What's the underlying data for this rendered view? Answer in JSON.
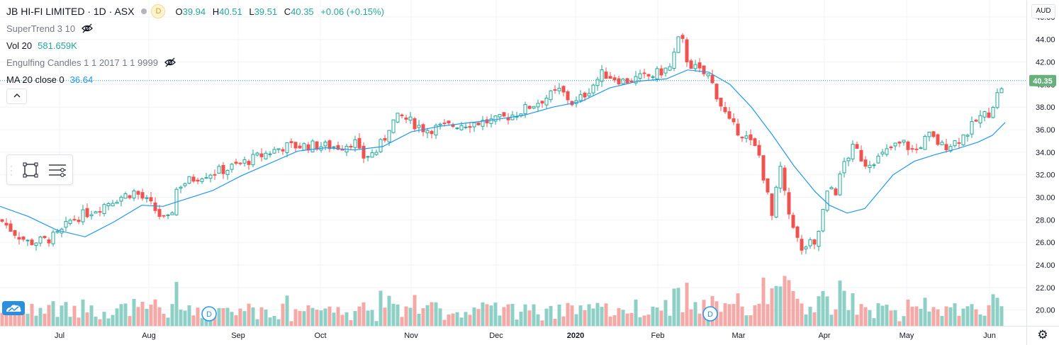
{
  "header": {
    "title": "JB HI-FI LIMITED · 1D · ASX",
    "dividend_badge": "D",
    "ohlc": {
      "o_label": "O",
      "o_value": "39.94",
      "h_label": "H",
      "h_value": "40.51",
      "l_label": "L",
      "l_value": "39.51",
      "c_label": "C",
      "c_value": "40.35",
      "change": "+0.06 (+0.15%)"
    }
  },
  "indicators": [
    {
      "name": "SuperTrend 3 10",
      "value": "",
      "hidden": true
    },
    {
      "name": "Vol 20",
      "value": "581.659K",
      "hidden": false
    },
    {
      "name": "Engulfing Candles 1 1 2017 1 1 9999",
      "value": "",
      "hidden": true
    },
    {
      "name": "MA 20 close 0",
      "value": "36.64",
      "hidden": false
    }
  ],
  "icons": {
    "eye_off": "eye-off-icon",
    "collapse": "chevron-up-icon",
    "rectangle_tool": "rectangle-tool-icon",
    "object_tree": "object-tree-icon",
    "logo": "tradingview-logo-icon",
    "settings": "gear-icon",
    "dividend_marker": "dividend-marker-icon"
  },
  "currency": "AUD",
  "colors": {
    "up": "#26a69a",
    "down": "#ef5350",
    "vol_up": "#8fd0c6",
    "vol_down": "#f4a9a7",
    "ma": "#2196f3",
    "grid": "#f0f3fa",
    "last_price_badge": "#66b07c"
  },
  "last_price_label": "40.35",
  "dividend_markers": [
    {
      "x_date": "2019-08-19",
      "label": "D"
    },
    {
      "x_date": "2020-02-18",
      "label": "D"
    }
  ],
  "chart_data": {
    "type": "candlestick",
    "title": "JB HI-FI LIMITED · 1D · ASX",
    "ylim": [
      18.6,
      47.5
    ],
    "y_ticks": [
      "20.00",
      "22.00",
      "24.00",
      "26.00",
      "28.00",
      "30.00",
      "32.00",
      "34.00",
      "36.00",
      "38.00",
      "40.00",
      "42.00",
      "44.00",
      "46.00"
    ],
    "x_ticks": [
      "Jul",
      "Aug",
      "Sep",
      "Oct",
      "Nov",
      "Dec",
      "2020",
      "Feb",
      "Mar",
      "Apr",
      "May",
      "Jun"
    ],
    "grid": true,
    "last_price": 40.35,
    "series": [
      {
        "name": "JB HI-FI LIMITED",
        "type": "candlestick",
        "anchors": [
          [
            1,
            28.0
          ],
          [
            18,
            27.0
          ],
          [
            40,
            26.0
          ],
          [
            65,
            26.2
          ],
          [
            85,
            26.8
          ],
          [
            100,
            28.0
          ],
          [
            130,
            28.8
          ],
          [
            160,
            29.8
          ],
          [
            190,
            30.5
          ],
          [
            215,
            29.2
          ],
          [
            230,
            28.0
          ],
          [
            240,
            28.0
          ],
          [
            250,
            31.0
          ],
          [
            285,
            32.0
          ],
          [
            320,
            32.5
          ],
          [
            360,
            33.5
          ],
          [
            400,
            34.5
          ],
          [
            440,
            34.6
          ],
          [
            480,
            34.5
          ],
          [
            500,
            35.0
          ],
          [
            510,
            33.5
          ],
          [
            530,
            34.0
          ],
          [
            545,
            35.5
          ],
          [
            550,
            36.5
          ],
          [
            565,
            37.2
          ],
          [
            600,
            36.0
          ],
          [
            650,
            36.5
          ],
          [
            700,
            36.8
          ],
          [
            730,
            37.5
          ],
          [
            760,
            38.5
          ],
          [
            790,
            39.5
          ],
          [
            810,
            38.2
          ],
          [
            830,
            39.5
          ],
          [
            850,
            41.0
          ],
          [
            880,
            40.3
          ],
          [
            920,
            40.8
          ],
          [
            945,
            41.5
          ],
          [
            960,
            44.5
          ],
          [
            970,
            42.0
          ],
          [
            990,
            41.0
          ],
          [
            1000,
            40.8
          ],
          [
            1015,
            38.5
          ],
          [
            1030,
            36.5
          ],
          [
            1050,
            35.5
          ],
          [
            1070,
            34.0
          ],
          [
            1090,
            28.0
          ],
          [
            1100,
            33.0
          ],
          [
            1110,
            29.0
          ],
          [
            1120,
            27.5
          ],
          [
            1130,
            25.0
          ],
          [
            1140,
            26.0
          ],
          [
            1150,
            25.5
          ],
          [
            1160,
            28.5
          ],
          [
            1170,
            31.0
          ],
          [
            1180,
            30.5
          ],
          [
            1190,
            33.0
          ],
          [
            1205,
            34.5
          ],
          [
            1220,
            33.0
          ],
          [
            1240,
            33.5
          ],
          [
            1260,
            34.5
          ],
          [
            1275,
            34.8
          ],
          [
            1290,
            34.0
          ],
          [
            1310,
            35.5
          ],
          [
            1330,
            34.5
          ],
          [
            1350,
            35.0
          ],
          [
            1365,
            35.8
          ],
          [
            1380,
            37.0
          ],
          [
            1395,
            37.5
          ],
          [
            1410,
            39.5
          ],
          [
            1418,
            40.35
          ]
        ]
      },
      {
        "name": "MA 20 close 0",
        "type": "line",
        "color": "#2196f3",
        "anchors": [
          [
            0,
            29.2
          ],
          [
            40,
            28.3
          ],
          [
            80,
            27.1
          ],
          [
            120,
            26.5
          ],
          [
            160,
            27.8
          ],
          [
            200,
            29.3
          ],
          [
            230,
            29.2
          ],
          [
            260,
            29.8
          ],
          [
            300,
            30.6
          ],
          [
            340,
            31.9
          ],
          [
            380,
            33.0
          ],
          [
            420,
            34.1
          ],
          [
            460,
            34.4
          ],
          [
            500,
            34.2
          ],
          [
            540,
            34.5
          ],
          [
            580,
            35.8
          ],
          [
            620,
            36.3
          ],
          [
            660,
            36.6
          ],
          [
            700,
            36.9
          ],
          [
            740,
            37.3
          ],
          [
            780,
            38.0
          ],
          [
            820,
            38.5
          ],
          [
            860,
            39.7
          ],
          [
            900,
            40.3
          ],
          [
            940,
            40.5
          ],
          [
            970,
            41.3
          ],
          [
            1000,
            41.1
          ],
          [
            1030,
            40.0
          ],
          [
            1060,
            38.0
          ],
          [
            1090,
            35.5
          ],
          [
            1120,
            32.8
          ],
          [
            1150,
            30.5
          ],
          [
            1170,
            29.3
          ],
          [
            1195,
            28.6
          ],
          [
            1220,
            29.0
          ],
          [
            1240,
            30.5
          ],
          [
            1260,
            32.0
          ],
          [
            1290,
            33.2
          ],
          [
            1320,
            33.8
          ],
          [
            1350,
            34.3
          ],
          [
            1380,
            34.9
          ],
          [
            1400,
            35.5
          ],
          [
            1418,
            36.64
          ]
        ]
      },
      {
        "name": "Vol 20",
        "type": "volume",
        "value": "581.659K"
      }
    ]
  }
}
